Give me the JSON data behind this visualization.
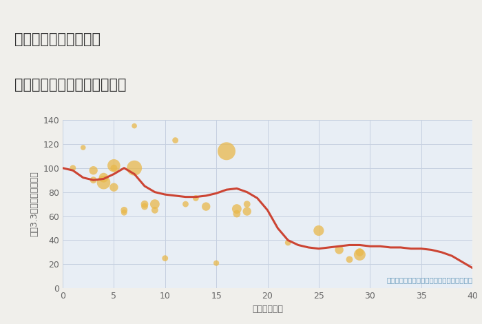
{
  "title_line1": "三重県津市美杉町奥津",
  "title_line2": "築年数別中古マンション価格",
  "xlabel": "築年数（年）",
  "ylabel": "坪（3.3㎡）単価（万円）",
  "annotation": "円の大きさは、取引のあった物件面積を示す",
  "xlim": [
    0,
    40
  ],
  "ylim": [
    0,
    140
  ],
  "xticks": [
    0,
    5,
    10,
    15,
    20,
    25,
    30,
    35,
    40
  ],
  "yticks": [
    0,
    20,
    40,
    60,
    80,
    100,
    120,
    140
  ],
  "fig_bg_color": "#f0efeb",
  "plot_bg_color": "#e8eef5",
  "bubble_color": "#e8b84b",
  "bubble_alpha": 0.75,
  "line_color": "#cc4433",
  "line_width": 2.2,
  "scatter_x": [
    1,
    2,
    3,
    3,
    4,
    4,
    5,
    5,
    5,
    6,
    6,
    7,
    7,
    8,
    8,
    9,
    9,
    10,
    11,
    12,
    13,
    14,
    15,
    16,
    17,
    17,
    18,
    18,
    22,
    25,
    27,
    28,
    29,
    29
  ],
  "scatter_y": [
    100,
    117,
    98,
    90,
    88,
    92,
    102,
    84,
    100,
    63,
    65,
    135,
    100,
    70,
    68,
    70,
    65,
    25,
    123,
    70,
    75,
    68,
    21,
    114,
    66,
    62,
    70,
    64,
    38,
    48,
    32,
    24,
    28,
    30
  ],
  "scatter_size": [
    40,
    30,
    80,
    50,
    200,
    100,
    180,
    80,
    50,
    40,
    50,
    30,
    250,
    60,
    50,
    100,
    50,
    40,
    40,
    40,
    40,
    80,
    35,
    350,
    100,
    60,
    50,
    80,
    40,
    120,
    80,
    50,
    150,
    70
  ],
  "line_x": [
    0,
    1,
    2,
    3,
    4,
    5,
    6,
    7,
    8,
    9,
    10,
    11,
    12,
    13,
    14,
    15,
    16,
    17,
    18,
    19,
    20,
    21,
    22,
    23,
    24,
    25,
    26,
    27,
    28,
    29,
    30,
    31,
    32,
    33,
    34,
    35,
    36,
    37,
    38,
    39,
    40
  ],
  "line_y": [
    100,
    98,
    92,
    90,
    91,
    95,
    100,
    95,
    85,
    80,
    78,
    77,
    76,
    76,
    77,
    79,
    82,
    83,
    80,
    75,
    65,
    50,
    40,
    36,
    34,
    33,
    34,
    35,
    36,
    36,
    35,
    35,
    34,
    34,
    33,
    33,
    32,
    30,
    27,
    22,
    17
  ]
}
